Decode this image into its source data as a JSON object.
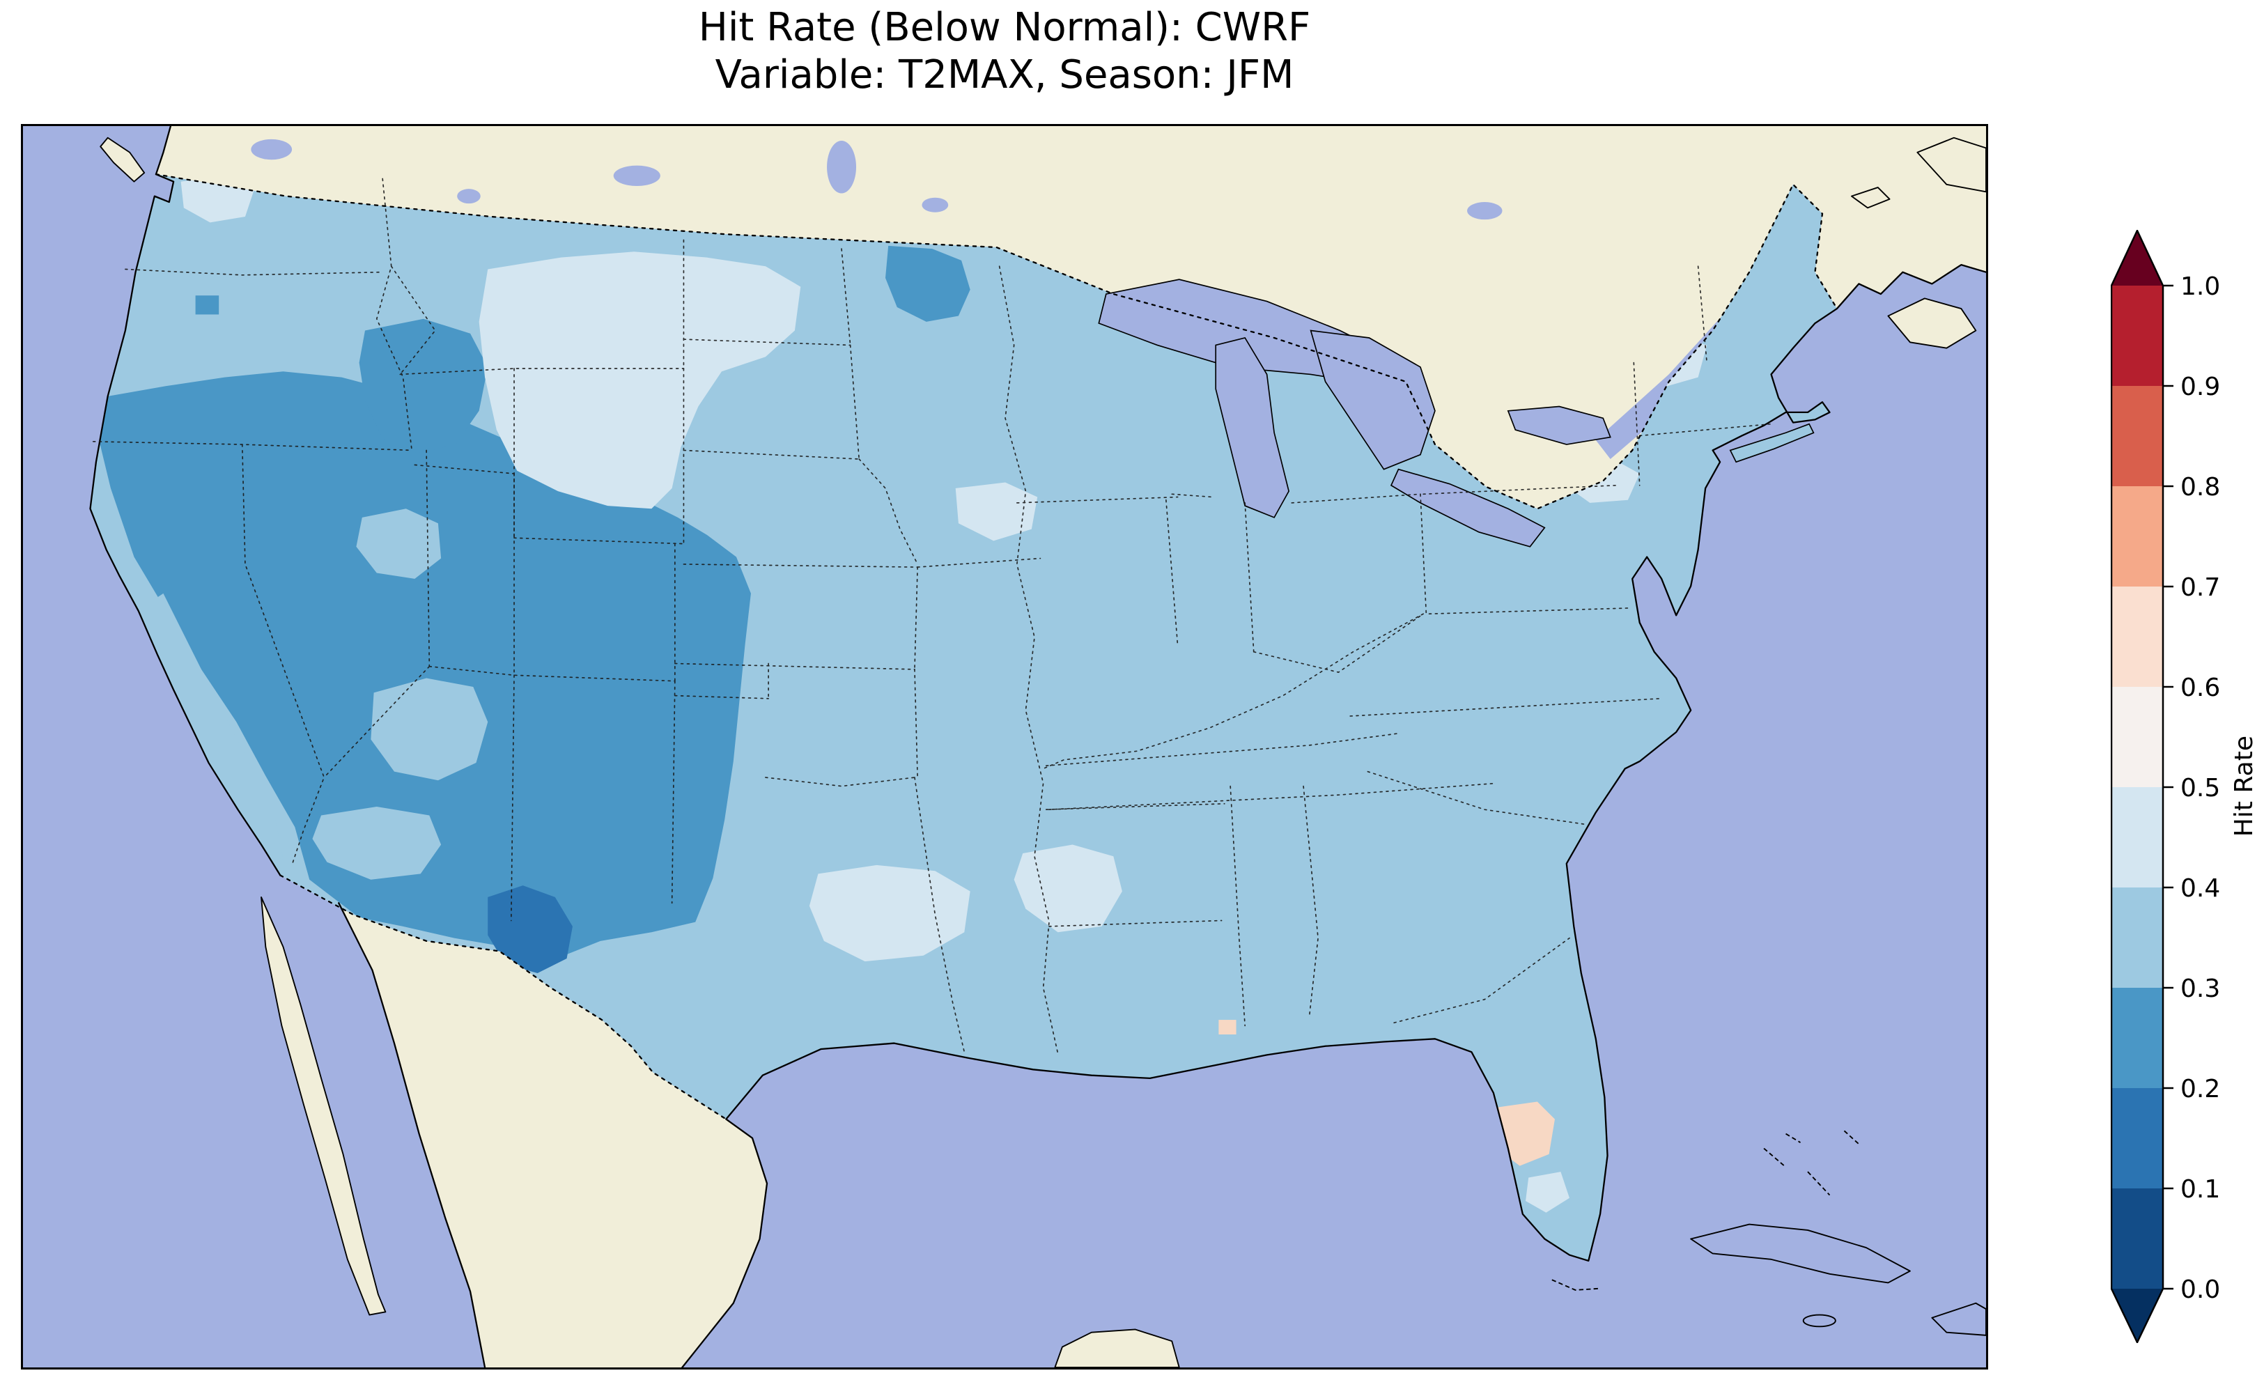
{
  "title": {
    "line1": "Hit Rate (Below Normal): CWRF",
    "line2": "Variable: T2MAX, Season: JFM"
  },
  "colorbar": {
    "label": "Hit Rate",
    "ticks": [
      "1.0",
      "0.9",
      "0.8",
      "0.7",
      "0.6",
      "0.5",
      "0.4",
      "0.3",
      "0.2",
      "0.1",
      "0.0"
    ],
    "bins": [
      {
        "range": [
          0.0,
          0.1
        ],
        "color": "#134d88"
      },
      {
        "range": [
          0.1,
          0.2
        ],
        "color": "#2b74b2"
      },
      {
        "range": [
          0.2,
          0.3
        ],
        "color": "#4a97c6"
      },
      {
        "range": [
          0.3,
          0.4
        ],
        "color": "#9dc9e1"
      },
      {
        "range": [
          0.4,
          0.5
        ],
        "color": "#d4e6f1"
      },
      {
        "range": [
          0.5,
          0.6
        ],
        "color": "#f6f1ee"
      },
      {
        "range": [
          0.6,
          0.7
        ],
        "color": "#fadfd0"
      },
      {
        "range": [
          0.7,
          0.8
        ],
        "color": "#f5a989"
      },
      {
        "range": [
          0.8,
          0.9
        ],
        "color": "#d95f4c"
      },
      {
        "range": [
          0.9,
          1.0
        ],
        "color": "#b51f2e"
      }
    ],
    "under_arrow_color": "#053061",
    "over_arrow_color": "#67001f"
  },
  "map": {
    "colors": {
      "ocean": "#a3b1e1",
      "land": "#f1eed9",
      "us_base": "#9dc9e1",
      "bin_01_02": "#2b74b2",
      "bin_02_03": "#4a97c6",
      "bin_04_05": "#d4e6f1",
      "pink_05_06": "#f7d8c4",
      "coastline": "#000000",
      "state_border": "#1a1a1a"
    }
  },
  "chart_data": {
    "type": "heatmap",
    "title": "Hit Rate (Below Normal): CWRF",
    "subtitle": "Variable: T2MAX, Season: JFM",
    "model": "CWRF",
    "metric": "Hit Rate (Below Normal)",
    "variable": "T2MAX",
    "season": "JFM",
    "region": "Contiguous United States",
    "value_range": [
      0.0,
      1.0
    ],
    "colormap": "RdBu_r, discrete 0.1 bins, extended with arrows at both ends",
    "colorbar_label": "Hit Rate",
    "colorbar_ticks": [
      1.0,
      0.9,
      0.8,
      0.7,
      0.6,
      0.5,
      0.4,
      0.3,
      0.2,
      0.1,
      0.0
    ],
    "legend_position": "right",
    "values_by_region": [
      {
        "region": "Interior California, Nevada, Utah, Arizona, western Colorado, western New Mexico",
        "hit_rate_bin": "0.2-0.3"
      },
      {
        "region": "South-central New Mexico (local minimum)",
        "hit_rate_bin": "0.1-0.2"
      },
      {
        "region": "Southwest Montana / central Idaho",
        "hit_rate_bin": "0.2-0.3"
      },
      {
        "region": "Northern Minnesota",
        "hit_rate_bin": "0.2-0.3"
      },
      {
        "region": "Eastern Montana, western Dakotas, northern Wyoming",
        "hit_rate_bin": "0.4-0.5"
      },
      {
        "region": "Central Washington",
        "hit_rate_bin": "0.4-0.5"
      },
      {
        "region": "Southern Plains (Oklahoma / northern Texas)",
        "hit_rate_bin": "0.4-0.5"
      },
      {
        "region": "Mississippi / Alabama patches",
        "hit_rate_bin": "0.4-0.5"
      },
      {
        "region": "Most of central and eastern U.S. and coastal California",
        "hit_rate_bin": "0.3-0.4"
      },
      {
        "region": "Central Florida (local maximum, pale pink)",
        "hit_rate_bin": "0.5-0.6"
      }
    ]
  }
}
